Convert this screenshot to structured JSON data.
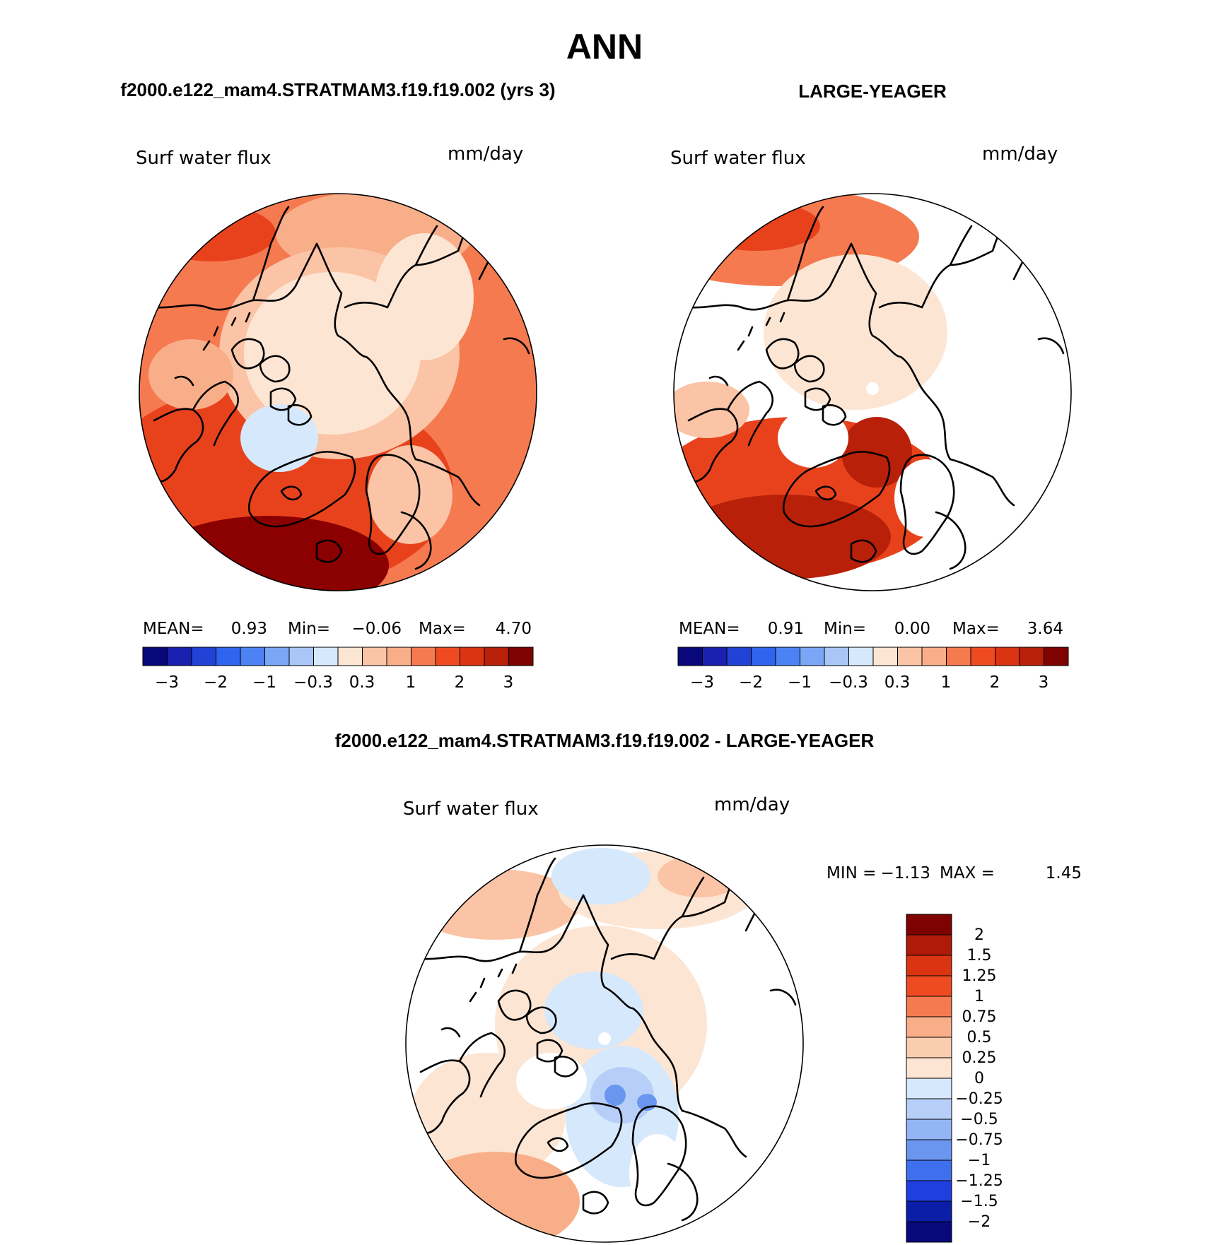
{
  "figure": {
    "main_title": "ANN",
    "colors": {
      "deep_red": "#8b0000",
      "red": "#e8421d",
      "orange": "#f57a50",
      "light_orange": "#f9ae8a",
      "peach": "#fde5d3",
      "pale_blue": "#d6e8fb",
      "blue": "#5f8fe8",
      "dark_blue": "#10108a"
    }
  },
  "panels": [
    {
      "id": "model",
      "header": "f2000.e122_mam4.STRATMAM3.f19.f19.002 (yrs 3)",
      "variable": "Surf water flux",
      "units": "mm/day",
      "stats": {
        "mean_label": "MEAN=",
        "mean": "0.93",
        "min_label": "Min=",
        "min": "−0.06",
        "max_label": "Max=",
        "max": "4.70"
      },
      "colorbar_labels": [
        "−3",
        "−2",
        "−1",
        "−0.3",
        "0.3",
        "1",
        "2",
        "3"
      ]
    },
    {
      "id": "obs",
      "header": "LARGE-YEAGER",
      "variable": "Surf water flux",
      "units": "mm/day",
      "stats": {
        "mean_label": "MEAN=",
        "mean": "0.91",
        "min_label": "Min=",
        "min": "0.00",
        "max_label": "Max=",
        "max": "3.64"
      },
      "colorbar_labels": [
        "−3",
        "−2",
        "−1",
        "−0.3",
        "0.3",
        "1",
        "2",
        "3"
      ]
    },
    {
      "id": "diff",
      "header": "f2000.e122_mam4.STRATMAM3.f19.f19.002 - LARGE-YEAGER",
      "variable": "Surf water flux",
      "units": "mm/day",
      "stats": {
        "min_label": "MIN =",
        "min": "−1.13",
        "max_label": "MAX =",
        "max": "1.45"
      },
      "colorbar_labels": [
        "2",
        "1.5",
        "1.25",
        "1",
        "0.75",
        "0.5",
        "0.25",
        "0",
        "−0.25",
        "−0.5",
        "−0.75",
        "−1",
        "−1.25",
        "−1.5",
        "−2"
      ]
    }
  ],
  "colorbar_colors_16": [
    "#08087a",
    "#1a20b0",
    "#2242d6",
    "#2f64ee",
    "#4c82f4",
    "#7ba5f5",
    "#a9c6f7",
    "#d6e8fb",
    "#fde5d3",
    "#fbc4a6",
    "#f9ae8a",
    "#f57a50",
    "#ee4b23",
    "#da3412",
    "#b8200a",
    "#7e0202"
  ],
  "colorbar_colors_diff": [
    "#7e0202",
    "#b01a08",
    "#da3412",
    "#ee4b23",
    "#f57a50",
    "#f9ae8a",
    "#fbcdb0",
    "#fde5d3",
    "#d6e8fb",
    "#b7cff8",
    "#93b4f5",
    "#6a96f0",
    "#3f6fec",
    "#1f40e0",
    "#0a1ea8",
    "#08087a"
  ]
}
